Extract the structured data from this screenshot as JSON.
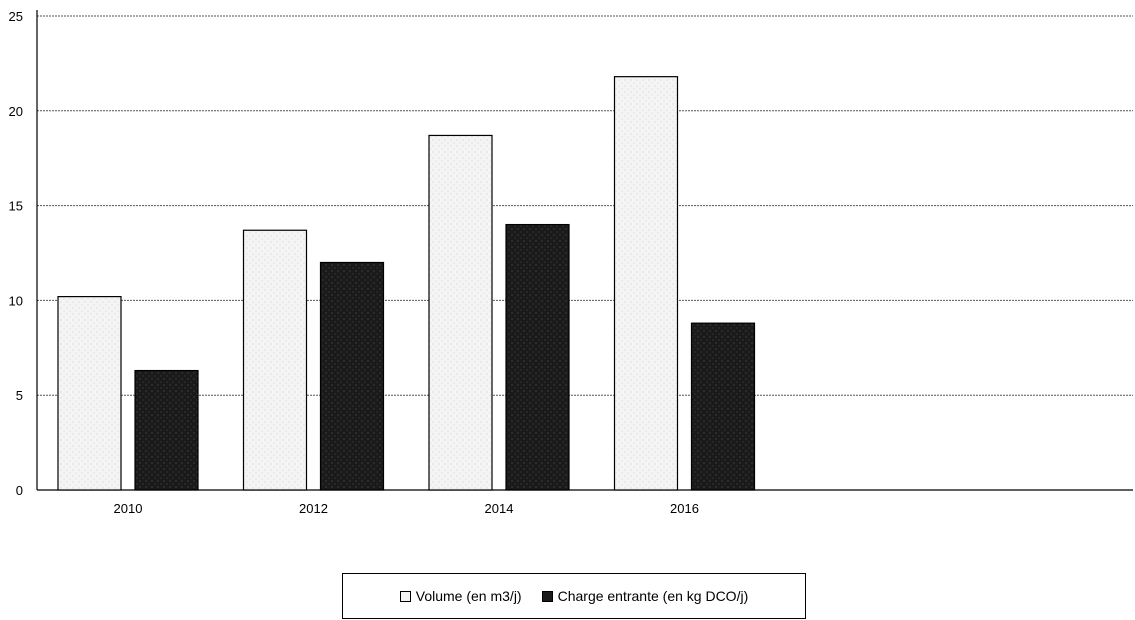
{
  "chart_data": {
    "type": "bar",
    "categories": [
      "2010",
      "2012",
      "2014",
      "2016"
    ],
    "series": [
      {
        "name": "Volume (en m3/j)",
        "values": [
          10.2,
          13.7,
          18.7,
          21.8
        ],
        "color": "#f4f4f4"
      },
      {
        "name": "Charge entrante (en kg DCO/j)",
        "values": [
          6.3,
          12.0,
          14.0,
          8.8
        ],
        "color": "#1a1a1a"
      }
    ],
    "title": "",
    "xlabel": "",
    "ylabel": "",
    "ylim": [
      0,
      25
    ],
    "yticks": [
      0,
      5,
      10,
      15,
      20,
      25
    ],
    "grid": true,
    "legend_position": "bottom-center"
  }
}
